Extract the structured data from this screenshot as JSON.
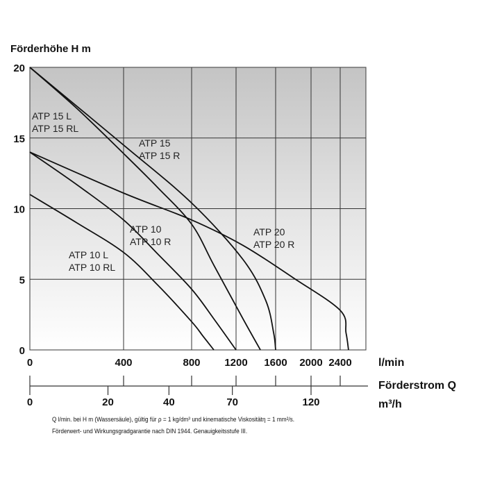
{
  "chart_data": {
    "type": "line",
    "title": "Förderhöhe H m",
    "ylabel": "Förderhöhe H m",
    "xlabel": "Förderstrom Q",
    "x_unit": "l/min",
    "x2_unit": "m³/h",
    "ylim": [
      0,
      20
    ],
    "xlim": [
      0,
      2750
    ],
    "yticks": [
      0,
      5,
      10,
      15,
      20
    ],
    "xticks": [
      0,
      400,
      800,
      1200,
      1600,
      2000,
      2400
    ],
    "x2ticks": [
      0,
      20,
      40,
      70,
      120
    ],
    "x_scale": "nonlinear",
    "grid": true,
    "background": "gray gradient, dark at top to white at bottom",
    "line_color": "#111111",
    "series": [
      {
        "name": "ATP 10 L / ATP 10 RL",
        "labels": [
          "ATP 10 L",
          "ATP 10 RL"
        ],
        "x": [
          0,
          200,
          400,
          600,
          800,
          900,
          1000
        ],
        "y": [
          11,
          9.0,
          6.9,
          4.6,
          2.0,
          1.0,
          0
        ]
      },
      {
        "name": "ATP 10 / ATP 10 R",
        "labels": [
          "ATP 10",
          "ATP 10 R"
        ],
        "x": [
          0,
          200,
          400,
          600,
          800,
          1000,
          1200
        ],
        "y": [
          14,
          11.7,
          9.2,
          6.8,
          4.3,
          2.2,
          0
        ]
      },
      {
        "name": "ATP 15 L / ATP 15 RL",
        "labels": [
          "ATP 15 L",
          "ATP 15 RL"
        ],
        "x": [
          0,
          200,
          400,
          600,
          800,
          1000,
          1270,
          1446
        ],
        "y": [
          20,
          17.1,
          13.9,
          11.5,
          8.9,
          6.0,
          2.2,
          0
        ]
      },
      {
        "name": "ATP 15 / ATP 15 R",
        "labels": [
          "ATP 15",
          "ATP 15 R"
        ],
        "x": [
          0,
          400,
          800,
          1270,
          1500,
          1580,
          1600
        ],
        "y": [
          20,
          14.5,
          10.4,
          6.4,
          3.5,
          1.2,
          0
        ]
      },
      {
        "name": "ATP 20 / ATP 20 R",
        "labels": [
          "ATP 20",
          "ATP 20 R"
        ],
        "x": [
          0,
          400,
          800,
          1270,
          1800,
          2400,
          2480,
          2514
        ],
        "y": [
          14,
          11.1,
          9.2,
          7.4,
          5.1,
          2.8,
          1.2,
          0
        ]
      }
    ],
    "footnote": [
      "Q l/min. bei H m (Wassersäule), gültig für ρ = 1 kg/dm³ und kinematische Viskositätη = 1 mm²/s.",
      "Förderwert- und Wirkungsgradgarantie nach DIN 1944. Genauigkeitsstufe III."
    ]
  }
}
